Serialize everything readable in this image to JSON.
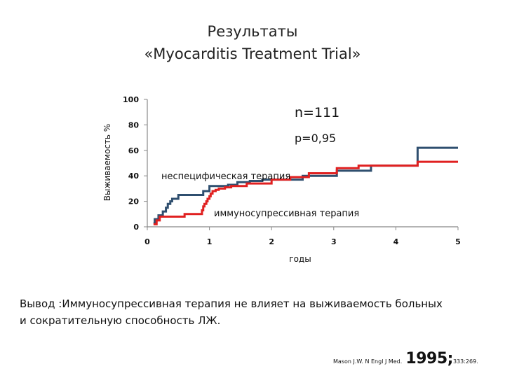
{
  "slide": {
    "title_line1": "Результаты",
    "title_line2": "«Myocarditis Treatment Trial»",
    "conclusion_line1": "Вывод :Иммуносупрессивная терапия не влияет на выживаемость больных",
    "conclusion_line2": "и сократительную способность ЛЖ.",
    "citation_source": "Mason J.W. N Engl J Med.",
    "citation_year": "1995;",
    "citation_volume": "333:269."
  },
  "chart_data": {
    "type": "line",
    "step": true,
    "xlabel": "годы",
    "ylabel": "Выживаемость %",
    "xlim": [
      0,
      5
    ],
    "ylim": [
      0,
      100
    ],
    "xticks": [
      0,
      1,
      2,
      3,
      4,
      5
    ],
    "yticks": [
      0,
      20,
      40,
      60,
      80,
      100
    ],
    "grid": false,
    "annotations": {
      "n": "n=111",
      "p": "p=0,95",
      "label_nonspecific": "неспецифическая терапия",
      "label_immuno": "иммуносупрессивная терапия"
    },
    "series": [
      {
        "name": "неспецифическая терапия",
        "color": "#2f4f6f",
        "x": [
          0.1,
          0.12,
          0.18,
          0.25,
          0.3,
          0.33,
          0.37,
          0.4,
          0.5,
          0.9,
          1.0,
          1.3,
          1.45,
          1.65,
          1.85,
          2.5,
          3.05,
          3.6,
          4.35,
          5.0
        ],
        "y": [
          3,
          6,
          9,
          12,
          15,
          18,
          20,
          22,
          25,
          28,
          32,
          33,
          35,
          36,
          37,
          40,
          44,
          48,
          62,
          62
        ]
      },
      {
        "name": "иммуносупрессивная терапия",
        "color": "#e02020",
        "x": [
          0.1,
          0.15,
          0.2,
          0.6,
          0.88,
          0.9,
          0.92,
          0.95,
          0.97,
          1.0,
          1.02,
          1.05,
          1.1,
          1.15,
          1.25,
          1.35,
          1.6,
          2.0,
          2.3,
          2.6,
          3.05,
          3.4,
          4.35,
          5.0
        ],
        "y": [
          2,
          5,
          8,
          10,
          13,
          16,
          18,
          20,
          22,
          24,
          26,
          28,
          29,
          30,
          31,
          32,
          34,
          37,
          39,
          42,
          46,
          48,
          51,
          51
        ]
      }
    ]
  }
}
